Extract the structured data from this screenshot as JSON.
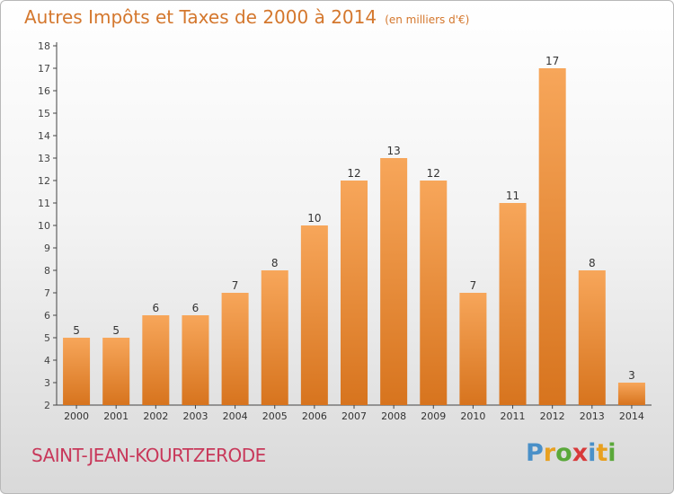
{
  "title": "Autres Impôts et Taxes de 2000 à 2014",
  "unit": "(en milliers d'€)",
  "place": "SAINT-JEAN-KOURTZERODE",
  "logo": [
    "P",
    "r",
    "o",
    "x",
    "i",
    "t",
    "i"
  ],
  "colors": {
    "bar_light": "#f7a65a",
    "bar_dark": "#d7741e",
    "title": "#d4772d",
    "place": "#c8385a",
    "axis": "#444444"
  },
  "chart_data": {
    "type": "bar",
    "categories": [
      "2000",
      "2001",
      "2002",
      "2003",
      "2004",
      "2005",
      "2006",
      "2007",
      "2008",
      "2009",
      "2010",
      "2011",
      "2012",
      "2013",
      "2014"
    ],
    "values": [
      5,
      5,
      6,
      6,
      7,
      8,
      10,
      12,
      13,
      12,
      7,
      11,
      17,
      8,
      3
    ],
    "title": "Autres Impôts et Taxes de 2000 à 2014",
    "ylabel": "",
    "xlabel": "",
    "ylim": [
      2,
      18
    ],
    "yticks": [
      2,
      3,
      4,
      5,
      6,
      7,
      8,
      9,
      10,
      11,
      12,
      13,
      14,
      15,
      16,
      17,
      18
    ],
    "grid": false,
    "data_labels": true
  }
}
